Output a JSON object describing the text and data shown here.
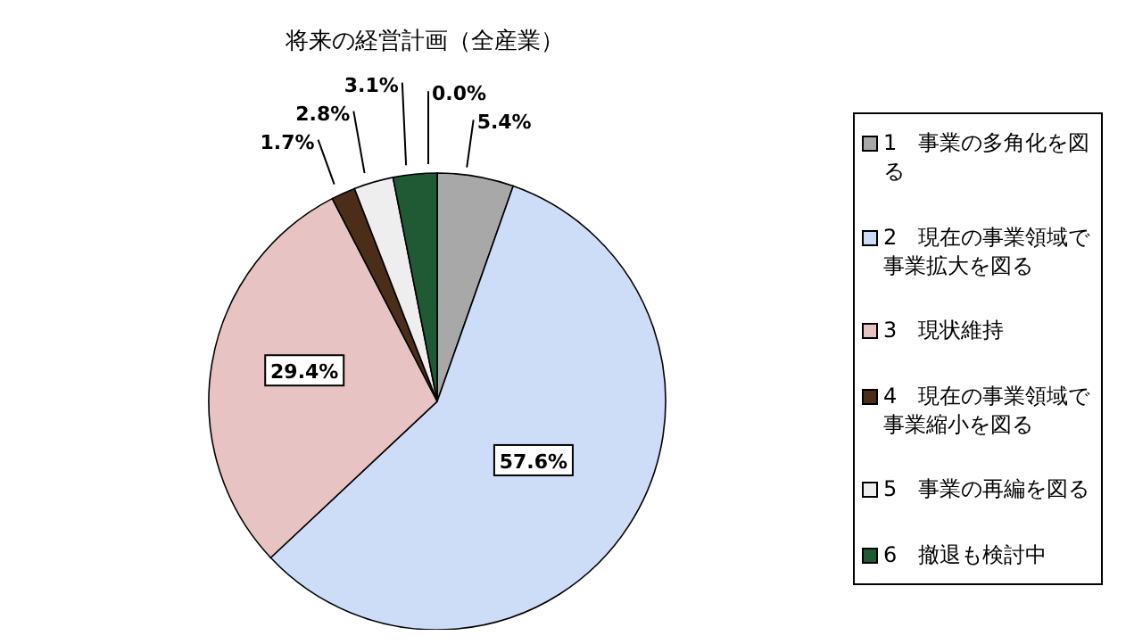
{
  "chart_data": {
    "type": "pie",
    "title": "将来の経営計画（全産業）",
    "categories": [
      "1　事業の多角化を図る",
      "2　現在の事業領域で事業拡大を図る",
      "3　現状維持",
      "4　現在の事業領域で事業縮小を図る",
      "5　事業の再編を図る",
      "6　撤退も検討中",
      null
    ],
    "values": [
      5.4,
      57.6,
      29.4,
      1.7,
      2.8,
      3.1,
      0.0
    ],
    "value_labels": [
      "5.4%",
      "57.6%",
      "29.4%",
      "1.7%",
      "2.8%",
      "3.1%",
      "0.0%"
    ],
    "colors": [
      "#a8a8a8",
      "#cddcf7",
      "#e8c3c3",
      "#4a2e1a",
      "#eeeeee",
      "#1f5a35",
      "#ffffff"
    ],
    "legend": "right"
  }
}
